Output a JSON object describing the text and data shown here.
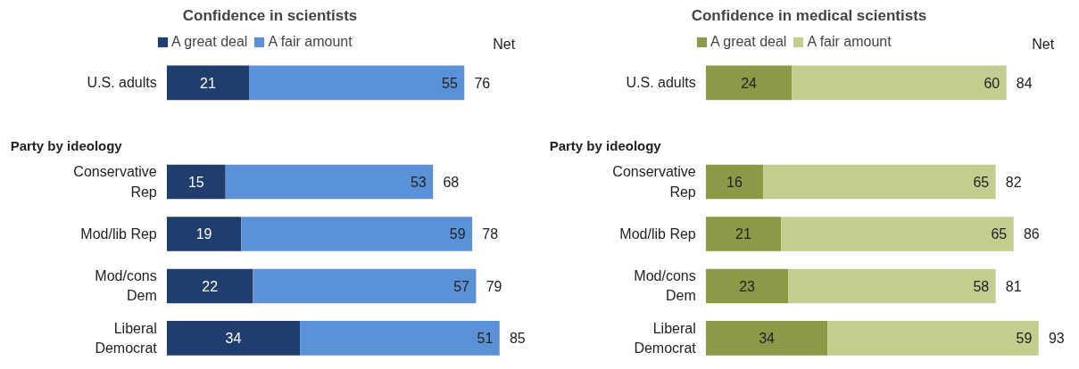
{
  "chart_data": [
    {
      "type": "bar",
      "title": "Confidence in scientists",
      "orientation": "horizontal",
      "stacked": true,
      "legend": "top",
      "data_labels": true,
      "categories": [
        "U.S. adults",
        "Conservative Rep",
        "Mod/lib Rep",
        "Mod/cons Dem",
        "Liberal Democrat"
      ],
      "series": [
        {
          "name": "A great deal",
          "color": "#1f3e6e",
          "values": [
            21,
            15,
            19,
            22,
            34
          ]
        },
        {
          "name": "A fair amount",
          "color": "#5b91d6",
          "values": [
            55,
            53,
            59,
            57,
            51
          ]
        }
      ],
      "totals": [
        "76",
        "68",
        "78",
        "79",
        "85"
      ],
      "annotations": [
        "Party by ideology",
        "Net"
      ]
    },
    {
      "type": "bar",
      "title": "Confidence in medical scientists",
      "orientation": "horizontal",
      "stacked": true,
      "legend": "top",
      "data_labels": true,
      "categories": [
        "U.S. adults",
        "Conservative Rep",
        "Mod/lib Rep",
        "Mod/cons Dem",
        "Liberal Democrat"
      ],
      "series": [
        {
          "name": "A great deal",
          "color": "#8a9a46",
          "values": [
            24,
            16,
            21,
            23,
            34
          ]
        },
        {
          "name": "A fair amount",
          "color": "#c4cc8e",
          "values": [
            60,
            65,
            65,
            58,
            59
          ]
        }
      ],
      "totals": [
        "84",
        "82",
        "86",
        "81",
        "93"
      ],
      "annotations": [
        "Party by ideology",
        "Net"
      ]
    }
  ]
}
